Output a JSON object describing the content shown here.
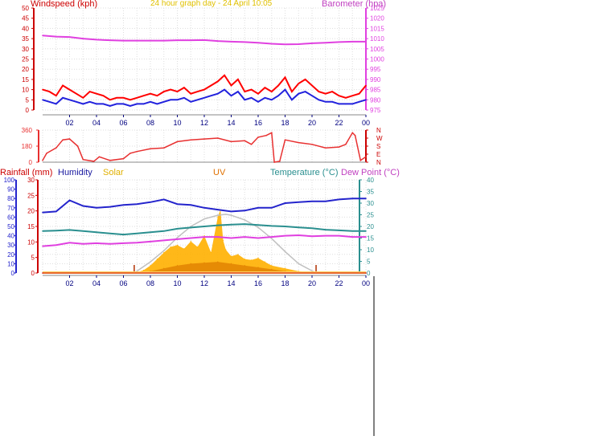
{
  "header": {
    "left_label": "Windspeed (kph)",
    "center_label": "24 hour graph day - 24 April 10:05",
    "right_label": "Barometer (hpa)"
  },
  "colors": {
    "windspeed": "#cc0000",
    "gust": "#ff0000",
    "wind_avg": "#2222dd",
    "barometer": "#e040e0",
    "direction": "#e83030",
    "humidity": "#2424cc",
    "temperature": "#2a8f8f",
    "dewpoint": "#e040e0",
    "solar": "#ffb000",
    "solar_dark": "#e08000",
    "uv": "#e07000",
    "max_solar_curve": "#c0c0c0",
    "rainfall": "#cc0000",
    "grid": "#dddddd",
    "axis_x": "#000080"
  },
  "chart_data": [
    {
      "type": "line",
      "name": "wind-barometer",
      "title": "24 hour graph day - 24 April 10:05",
      "ylabel": "Windspeed (kph)",
      "ylabel_right": "Barometer (hpa)",
      "ylim": [
        0,
        50
      ],
      "ylim_right": [
        975,
        1025
      ],
      "yticks": [
        "50",
        "45",
        "40",
        "35",
        "30",
        "25",
        "20",
        "15",
        "10",
        "5",
        "0"
      ],
      "yticks_right": [
        "1025",
        "1020",
        "1015",
        "1010",
        "1005",
        "1000",
        "995",
        "990",
        "985",
        "980",
        "975"
      ],
      "xticks": [
        "02",
        "04",
        "06",
        "08",
        "10",
        "12",
        "14",
        "16",
        "18",
        "20",
        "22",
        "00"
      ],
      "grid": true,
      "series": [
        {
          "name": "Barometer",
          "axis": "right",
          "x": [
            0,
            1,
            2,
            3,
            4,
            5,
            6,
            7,
            8,
            9,
            10,
            11,
            12,
            13,
            14,
            15,
            16,
            17,
            18,
            19,
            20,
            21,
            22,
            23,
            24
          ],
          "y": [
            1011.5,
            1011,
            1010.8,
            1010,
            1009.5,
            1009.2,
            1009,
            1009,
            1009,
            1009,
            1009.2,
            1009.2,
            1009.3,
            1008.8,
            1008.5,
            1008.3,
            1008,
            1007.5,
            1007.2,
            1007.3,
            1007.7,
            1008,
            1008.3,
            1008.5,
            1008.5
          ]
        },
        {
          "name": "Gust",
          "x": [
            0,
            0.5,
            1,
            1.5,
            2,
            2.5,
            3,
            3.5,
            4,
            4.5,
            5,
            5.5,
            6,
            6.5,
            7,
            7.5,
            8,
            8.5,
            9,
            9.5,
            10,
            10.5,
            11,
            11.5,
            12,
            12.5,
            13,
            13.5,
            14,
            14.5,
            15,
            15.5,
            16,
            16.5,
            17,
            17.5,
            18,
            18.5,
            19,
            19.5,
            20,
            20.5,
            21,
            21.5,
            22,
            22.5,
            23,
            23.5,
            24
          ],
          "y": [
            10,
            9,
            7,
            12,
            10,
            8,
            6,
            9,
            8,
            7,
            5,
            6,
            6,
            5,
            6,
            7,
            8,
            7,
            9,
            10,
            9,
            11,
            8,
            9,
            10,
            12,
            14,
            17,
            12,
            15,
            9,
            10,
            8,
            11,
            9,
            12,
            16,
            9,
            13,
            15,
            12,
            9,
            8,
            9,
            7,
            6,
            7,
            8,
            12
          ]
        },
        {
          "name": "Windspeed",
          "x": [
            0,
            0.5,
            1,
            1.5,
            2,
            2.5,
            3,
            3.5,
            4,
            4.5,
            5,
            5.5,
            6,
            6.5,
            7,
            7.5,
            8,
            8.5,
            9,
            9.5,
            10,
            10.5,
            11,
            11.5,
            12,
            12.5,
            13,
            13.5,
            14,
            14.5,
            15,
            15.5,
            16,
            16.5,
            17,
            17.5,
            18,
            18.5,
            19,
            19.5,
            20,
            20.5,
            21,
            21.5,
            22,
            22.5,
            23,
            23.5,
            24
          ],
          "y": [
            5,
            4,
            3,
            6,
            5,
            4,
            3,
            4,
            3,
            3,
            2,
            3,
            3,
            2,
            3,
            3,
            4,
            3,
            4,
            5,
            5,
            6,
            4,
            5,
            6,
            7,
            8,
            10,
            7,
            9,
            5,
            6,
            4,
            6,
            5,
            7,
            10,
            5,
            8,
            9,
            7,
            5,
            4,
            4,
            3,
            3,
            3,
            4,
            5
          ]
        }
      ]
    },
    {
      "type": "line",
      "name": "wind-direction",
      "ylim": [
        0,
        360
      ],
      "yticks": [
        "360",
        "180",
        "0"
      ],
      "yticks_right": [
        "N",
        "W",
        "S",
        "E",
        "N"
      ],
      "grid": true,
      "series": [
        {
          "name": "Direction",
          "x": [
            0,
            0.3,
            1,
            1.5,
            2,
            2.6,
            3,
            3.8,
            4.2,
            5,
            6,
            6.5,
            7,
            8,
            9,
            10,
            11,
            12,
            13,
            14,
            15,
            15.5,
            16,
            16.6,
            17,
            17.2,
            17.6,
            18,
            19,
            20,
            21,
            22,
            22.5,
            23,
            23.2,
            23.6,
            24
          ],
          "y": [
            20,
            100,
            160,
            250,
            260,
            180,
            30,
            10,
            60,
            20,
            40,
            100,
            120,
            150,
            160,
            230,
            250,
            260,
            270,
            230,
            240,
            200,
            280,
            300,
            330,
            0,
            10,
            250,
            220,
            200,
            160,
            170,
            200,
            330,
            300,
            20,
            60
          ]
        }
      ]
    },
    {
      "type": "line",
      "name": "humidity-temperature-solar",
      "legend": [
        "Rainfall (mm)",
        "Humidity",
        "Solar",
        "UV",
        "Temperature (°C)",
        "Dew Point (°C)"
      ],
      "ylim_humidity": [
        0,
        100
      ],
      "ylim_rain": [
        0,
        30
      ],
      "ylim_temp": [
        0,
        40
      ],
      "yticks_humidity": [
        "100",
        "90",
        "80",
        "70",
        "60",
        "50",
        "40",
        "30",
        "20",
        "10",
        "0"
      ],
      "yticks_rain": [
        "30",
        "25",
        "20",
        "15",
        "10",
        "5",
        "0"
      ],
      "yticks_temp": [
        "40",
        "35",
        "30",
        "25",
        "20",
        "15",
        "10",
        "5",
        "0"
      ],
      "xticks": [
        "02",
        "04",
        "06",
        "08",
        "10",
        "12",
        "14",
        "16",
        "18",
        "20",
        "22",
        "00"
      ],
      "sunrise_hour": 6.8,
      "sunset_hour": 20.3,
      "grid": true,
      "series": [
        {
          "name": "Humidity",
          "axis": "humidity",
          "x": [
            0,
            1,
            2,
            3,
            4,
            5,
            6,
            7,
            8,
            9,
            10,
            11,
            12,
            13,
            14,
            15,
            16,
            17,
            18,
            19,
            20,
            21,
            22,
            23,
            24
          ],
          "y": [
            65,
            66,
            78,
            72,
            70,
            71,
            73,
            74,
            76,
            79,
            74,
            73,
            70,
            68,
            66,
            67,
            70,
            70,
            75,
            76,
            77,
            77,
            79,
            80,
            80
          ]
        },
        {
          "name": "Temperature (°C)",
          "axis": "temp",
          "x": [
            0,
            1,
            2,
            3,
            4,
            5,
            6,
            7,
            8,
            9,
            10,
            11,
            12,
            13,
            14,
            15,
            16,
            17,
            18,
            19,
            20,
            21,
            22,
            23,
            24
          ],
          "y": [
            18,
            18.2,
            18.5,
            18,
            17.5,
            17,
            16.5,
            17,
            17.5,
            18,
            19,
            19.5,
            20,
            20.5,
            20.8,
            21,
            20.6,
            20.2,
            20,
            19.6,
            19.2,
            18.6,
            18.3,
            18,
            18
          ]
        },
        {
          "name": "Dew Point (°C)",
          "axis": "temp",
          "x": [
            0,
            1,
            2,
            3,
            4,
            5,
            6,
            7,
            8,
            9,
            10,
            11,
            12,
            13,
            14,
            15,
            16,
            17,
            18,
            19,
            20,
            21,
            22,
            23,
            24
          ],
          "y": [
            11.5,
            12,
            13,
            12.5,
            12.8,
            12.5,
            12.8,
            13,
            13.5,
            14,
            14.5,
            15,
            15.5,
            15.5,
            15,
            15.5,
            15,
            15.5,
            16,
            16.2,
            15.8,
            16,
            16,
            15.5,
            15.5
          ]
        },
        {
          "name": "Max solar",
          "axis": "humidity",
          "x": [
            6.8,
            8,
            9,
            10,
            11,
            12,
            13,
            13.6,
            14,
            15,
            16,
            17,
            18,
            19,
            20.3
          ],
          "y": [
            0,
            12,
            24,
            38,
            50,
            58,
            62,
            63,
            62,
            57,
            49,
            37,
            23,
            10,
            0
          ]
        },
        {
          "name": "Solar",
          "axis": "humidity",
          "x": [
            6.8,
            7.5,
            8,
            8.5,
            9,
            9.5,
            10,
            10.5,
            11,
            11.5,
            12,
            12.5,
            13,
            13.2,
            13.4,
            13.6,
            14,
            14.5,
            15,
            15.5,
            16,
            16.5,
            17,
            18,
            19,
            20,
            20.3
          ],
          "y": [
            0,
            3,
            8,
            15,
            22,
            28,
            30,
            26,
            34,
            28,
            40,
            22,
            60,
            68,
            35,
            25,
            18,
            20,
            15,
            14,
            16,
            12,
            8,
            5,
            2,
            1,
            0
          ]
        },
        {
          "name": "UV",
          "axis": "humidity",
          "x": [
            6.8,
            8,
            9,
            10,
            11,
            12,
            13,
            14,
            15,
            16,
            17,
            18,
            19,
            20.3
          ],
          "y": [
            0,
            2,
            5,
            8,
            10,
            11,
            12,
            10,
            8,
            6,
            4,
            2,
            1,
            0
          ]
        },
        {
          "name": "Rainfall (mm)",
          "axis": "rain",
          "x": [
            0,
            24
          ],
          "y": [
            0,
            0
          ]
        }
      ]
    }
  ]
}
